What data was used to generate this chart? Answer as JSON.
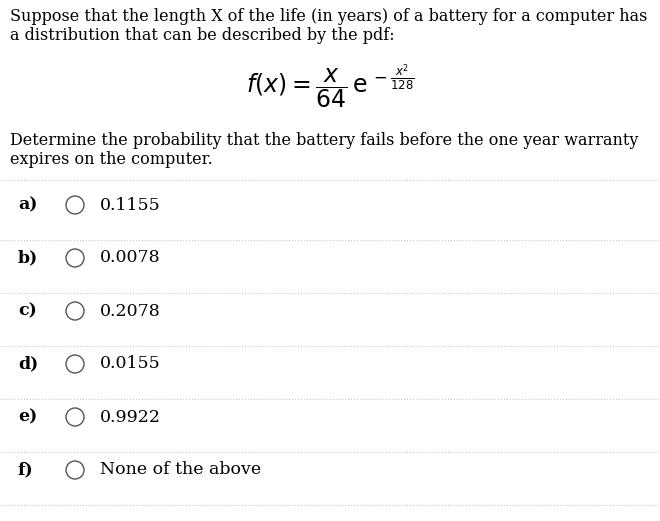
{
  "bg_color": "#ffffff",
  "text_color": "#000000",
  "title_line1": "Suppose that the length X of the life (in years) of a battery for a computer has",
  "title_line2": "a distribution that can be described by the pdf:",
  "desc_line1": "Determine the probability that the battery fails before the one year warranty",
  "desc_line2": "expires on the computer.",
  "options": [
    {
      "label": "a)",
      "value": "0.1155"
    },
    {
      "label": "b)",
      "value": "0.0078"
    },
    {
      "label": "c)",
      "value": "0.2078"
    },
    {
      "label": "d)",
      "value": "0.0155"
    },
    {
      "label": "e)",
      "value": "0.9922"
    },
    {
      "label": "f)",
      "value": "None of the above"
    }
  ],
  "divider_color": "#c8c8c8",
  "circle_color": "#555555",
  "font_size_body": 11.5,
  "font_size_options": 12.5,
  "font_size_formula": 17
}
